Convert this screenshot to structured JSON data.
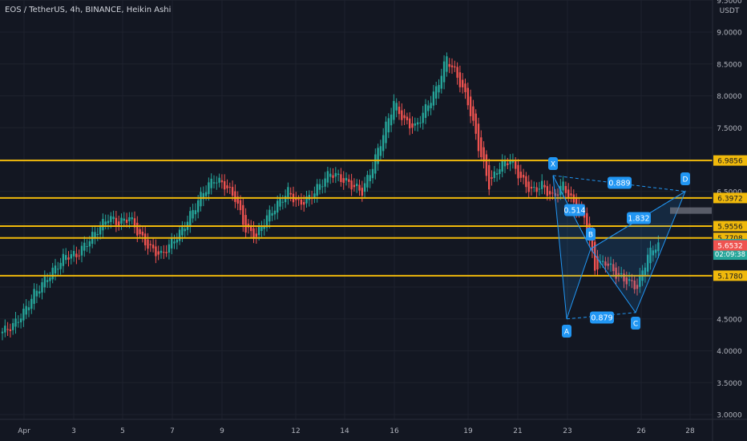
{
  "header": {
    "title": "EOS / TetherUS, 4h, BINANCE, Heikin Ashi",
    "currency": "USDT"
  },
  "colors": {
    "bg": "#131722",
    "grid": "#1e222d",
    "up": "#26a69a",
    "down": "#ef5350",
    "level": "#f0b90b",
    "pattern": "#2196f3",
    "axis_text": "#b2b5be"
  },
  "price_axis": {
    "ticks": [
      "9.5000",
      "9.0000",
      "8.5000",
      "8.0000",
      "7.5000",
      "6.5000",
      "4.5000",
      "4.0000",
      "3.5000",
      "3.0000"
    ]
  },
  "price_tags": [
    {
      "id": "level-6-9856",
      "label": "6.9856",
      "style": "level"
    },
    {
      "id": "level-6-3972",
      "label": "6.3972",
      "style": "level"
    },
    {
      "id": "level-5-9556",
      "label": "5.9556",
      "style": "level"
    },
    {
      "id": "level-5-7708",
      "label": "5.7708",
      "style": "level"
    },
    {
      "id": "last-price",
      "label": "5.6661",
      "sub": "02:09:38",
      "style": "last"
    },
    {
      "id": "ha-close",
      "label": "5.6532",
      "style": "down"
    },
    {
      "id": "level-5-1780",
      "label": "5.1780",
      "style": "level"
    }
  ],
  "time_axis": {
    "labels": [
      "Apr",
      "3",
      "5",
      "7",
      "9",
      "12",
      "14",
      "16",
      "19",
      "21",
      "23",
      "26",
      "28"
    ]
  },
  "chart_data": {
    "type": "candlestick",
    "symbol": "EOS / TetherUS",
    "interval": "4h",
    "exchange": "BINANCE",
    "candle_style": "Heikin Ashi",
    "ylim": [
      2.95,
      9.6
    ],
    "horizontal_levels": [
      6.9856,
      6.3972,
      5.9556,
      5.7708,
      5.178
    ],
    "approx_closes_every_4_bars": [
      4.3,
      4.4,
      4.6,
      4.9,
      5.1,
      5.3,
      5.5,
      5.5,
      5.7,
      5.9,
      6.1,
      6.0,
      6.1,
      5.8,
      5.6,
      5.5,
      5.7,
      5.9,
      6.2,
      6.5,
      6.7,
      6.6,
      6.4,
      5.9,
      5.8,
      6.1,
      6.3,
      6.5,
      6.3,
      6.4,
      6.6,
      6.8,
      6.7,
      6.6,
      6.5,
      6.9,
      7.4,
      7.9,
      7.6,
      7.5,
      7.8,
      8.1,
      8.6,
      8.3,
      7.9,
      7.2,
      6.6,
      6.9,
      7.0,
      6.7,
      6.5,
      6.6,
      6.4,
      6.6,
      6.3,
      6.1,
      5.3,
      5.4,
      5.2,
      5.1,
      5.0,
      5.5,
      5.7
    ],
    "harmonic_pattern": {
      "points": [
        {
          "label": "X",
          "time": "Apr 22",
          "price": 6.75
        },
        {
          "label": "A",
          "time": "Apr 23",
          "price": 4.5
        },
        {
          "label": "B",
          "time": "Apr 23",
          "price": 5.6
        },
        {
          "label": "C",
          "time": "Apr 26",
          "price": 4.6
        },
        {
          "label": "D",
          "time": "Apr 27",
          "price": 6.5
        }
      ],
      "ratios": [
        "0.889",
        "0.514",
        "1.832",
        "0.879"
      ]
    }
  }
}
